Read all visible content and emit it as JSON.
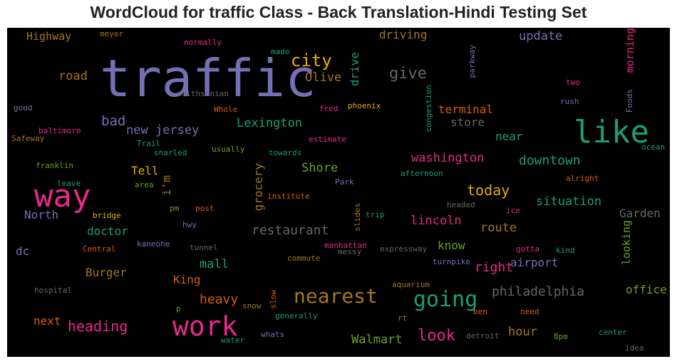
{
  "title": "WordCloud for traffic Class - Back Translation-Hindi Testing Set",
  "colors": {
    "background": "#000000",
    "purple": "#7570b3",
    "pink": "#e7298a",
    "green": "#1b9e77",
    "orange": "#d95f02",
    "lime": "#66a61e",
    "gold": "#e6ab02",
    "brown": "#a6761d",
    "gray": "#666666"
  },
  "words": [
    {
      "text": "traffic",
      "color": "#7570b3"
    },
    {
      "text": "way",
      "color": "#e7298a"
    },
    {
      "text": "like",
      "color": "#1b9e77"
    },
    {
      "text": "work",
      "color": "#e7298a"
    },
    {
      "text": "going",
      "color": "#1b9e77"
    },
    {
      "text": "nearest",
      "color": "#a6761d"
    },
    {
      "text": "city",
      "color": "#e6ab02"
    },
    {
      "text": "give",
      "color": "#666666"
    },
    {
      "text": "look",
      "color": "#e7298a"
    },
    {
      "text": "philadelphia",
      "color": "#666666"
    },
    {
      "text": "restaurant",
      "color": "#666666"
    },
    {
      "text": "heading",
      "color": "#e7298a"
    },
    {
      "text": "today",
      "color": "#e6ab02"
    },
    {
      "text": "downtown",
      "color": "#1b9e77"
    },
    {
      "text": "washington",
      "color": "#e7298a"
    },
    {
      "text": "heavy",
      "color": "#d95f02"
    },
    {
      "text": "situation",
      "color": "#1b9e77"
    },
    {
      "text": "new jersey",
      "color": "#7570b3"
    },
    {
      "text": "Lexington",
      "color": "#1b9e77"
    },
    {
      "text": "driving",
      "color": "#a6761d"
    },
    {
      "text": "update",
      "color": "#7570b3"
    },
    {
      "text": "bad",
      "color": "#7570b3"
    },
    {
      "text": "road",
      "color": "#a6761d"
    },
    {
      "text": "Olive",
      "color": "#a6761d"
    },
    {
      "text": "store",
      "color": "#666666"
    },
    {
      "text": "terminal",
      "color": "#d95f02"
    },
    {
      "text": "near",
      "color": "#1b9e77"
    },
    {
      "text": "Shore",
      "color": "#66a61e"
    },
    {
      "text": "route",
      "color": "#a6761d"
    },
    {
      "text": "lincoln",
      "color": "#e7298a"
    },
    {
      "text": "doctor",
      "color": "#1b9e77"
    },
    {
      "text": "mall",
      "color": "#1b9e77"
    },
    {
      "text": "right",
      "color": "#e7298a"
    },
    {
      "text": "airport",
      "color": "#7570b3"
    },
    {
      "text": "hour",
      "color": "#a6761d"
    },
    {
      "text": "Walmart",
      "color": "#66a61e"
    },
    {
      "text": "Burger",
      "color": "#a6761d"
    },
    {
      "text": "King",
      "color": "#d95f02"
    },
    {
      "text": "Garden",
      "color": "#666666"
    },
    {
      "text": "office",
      "color": "#66a61e"
    },
    {
      "text": "Highway",
      "color": "#a6761d"
    },
    {
      "text": "North",
      "color": "#7570b3"
    },
    {
      "text": "dc",
      "color": "#7570b3"
    },
    {
      "text": "next",
      "color": "#d95f02"
    },
    {
      "text": "Tell",
      "color": "#e6ab02"
    },
    {
      "text": "know",
      "color": "#66a61e"
    },
    {
      "text": "drive",
      "color": "#1b9e77",
      "vertical": true
    },
    {
      "text": "morning",
      "color": "#e7298a",
      "vertical": true
    },
    {
      "text": "grocery",
      "color": "#a6761d",
      "vertical": true
    },
    {
      "text": "i'm",
      "color": "#a6761d",
      "vertical": true
    },
    {
      "text": "looking",
      "color": "#66a61e",
      "vertical": true
    },
    {
      "text": "congestion",
      "color": "#1b9e77",
      "vertical": true
    },
    {
      "text": "parkway",
      "color": "#7570b3",
      "vertical": true
    },
    {
      "text": "Foods",
      "color": "#7570b3",
      "vertical": true
    },
    {
      "text": "slides",
      "color": "#a6761d",
      "vertical": true
    },
    {
      "text": "slow",
      "color": "#d95f02",
      "vertical": true
    },
    {
      "text": "meyer",
      "color": "#a6761d"
    },
    {
      "text": "normally",
      "color": "#e7298a"
    },
    {
      "text": "made",
      "color": "#1b9e77"
    },
    {
      "text": "smithsonian",
      "color": "#666666"
    },
    {
      "text": "Whole",
      "color": "#d95f02"
    },
    {
      "text": "fred",
      "color": "#e7298a"
    },
    {
      "text": "phoenix",
      "color": "#e6ab02"
    },
    {
      "text": "good",
      "color": "#7570b3"
    },
    {
      "text": "baltimore",
      "color": "#e7298a"
    },
    {
      "text": "Safeway",
      "color": "#a6761d"
    },
    {
      "text": "Trail",
      "color": "#1b9e77"
    },
    {
      "text": "snarled",
      "color": "#1b9e77"
    },
    {
      "text": "usually",
      "color": "#66a61e"
    },
    {
      "text": "towards",
      "color": "#1b9e77"
    },
    {
      "text": "estimate",
      "color": "#e7298a"
    },
    {
      "text": "two",
      "color": "#e7298a"
    },
    {
      "text": "rush",
      "color": "#7570b3"
    },
    {
      "text": "ocean",
      "color": "#1b9e77"
    },
    {
      "text": "franklin",
      "color": "#66a61e"
    },
    {
      "text": "leave",
      "color": "#1b9e77"
    },
    {
      "text": "area",
      "color": "#66a61e"
    },
    {
      "text": "afternoon",
      "color": "#1b9e77"
    },
    {
      "text": "alright",
      "color": "#d95f02"
    },
    {
      "text": "institute",
      "color": "#d95f02"
    },
    {
      "text": "Park",
      "color": "#7570b3"
    },
    {
      "text": "headed",
      "color": "#666666"
    },
    {
      "text": "ice",
      "color": "#e7298a"
    },
    {
      "text": "pm",
      "color": "#66a61e"
    },
    {
      "text": "post",
      "color": "#d95f02"
    },
    {
      "text": "bridge",
      "color": "#e6ab02"
    },
    {
      "text": "trip",
      "color": "#1b9e77"
    },
    {
      "text": "hwy",
      "color": "#7570b3"
    },
    {
      "text": "kaneohe",
      "color": "#7570b3"
    },
    {
      "text": "tunnel",
      "color": "#666666"
    },
    {
      "text": "Central",
      "color": "#d95f02"
    },
    {
      "text": "manhattan",
      "color": "#e7298a"
    },
    {
      "text": "messy",
      "color": "#666666"
    },
    {
      "text": "commute",
      "color": "#a6761d"
    },
    {
      "text": "expressway",
      "color": "#666666"
    },
    {
      "text": "gotta",
      "color": "#e7298a"
    },
    {
      "text": "kind",
      "color": "#1b9e77"
    },
    {
      "text": "turnpike",
      "color": "#7570b3"
    },
    {
      "text": "hospital",
      "color": "#666666"
    },
    {
      "text": "aquarium",
      "color": "#a6761d"
    },
    {
      "text": "p",
      "color": "#66a61e"
    },
    {
      "text": "snow",
      "color": "#a6761d"
    },
    {
      "text": "generally",
      "color": "#1b9e77"
    },
    {
      "text": "rt",
      "color": "#a6761d"
    },
    {
      "text": "ben",
      "color": "#d95f02"
    },
    {
      "text": "need",
      "color": "#d95f02"
    },
    {
      "text": "water",
      "color": "#1b9e77"
    },
    {
      "text": "whats",
      "color": "#7570b3"
    },
    {
      "text": "detroit",
      "color": "#666666"
    },
    {
      "text": "8pm",
      "color": "#66a61e"
    },
    {
      "text": "center",
      "color": "#1b9e77"
    },
    {
      "text": "idea",
      "color": "#666666"
    }
  ]
}
